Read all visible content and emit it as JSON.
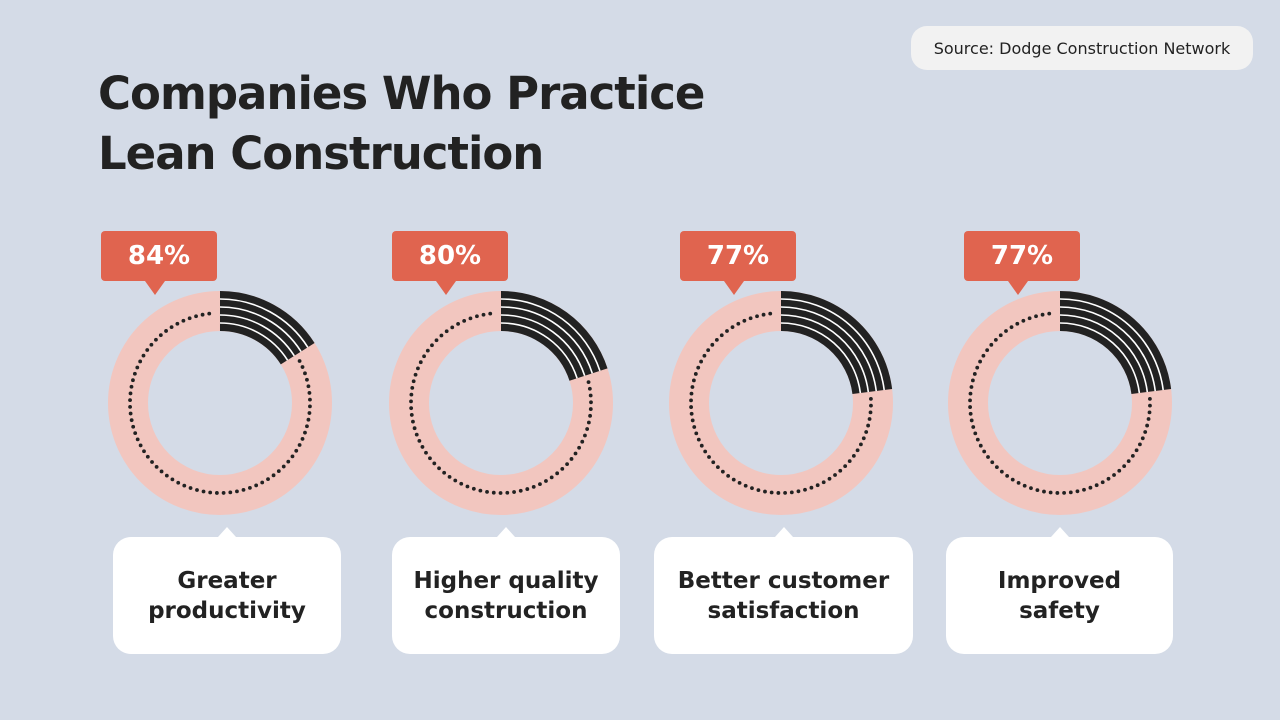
{
  "title": "Companies Who Practice Lean Construction",
  "source": "Source: Dodge Construction Network",
  "colors": {
    "badge": "#e0644f",
    "ring": "#f2c6bf",
    "remainder": "#222222",
    "background": "#d4dbe7"
  },
  "chart_data": {
    "type": "pie",
    "title": "Companies Who Practice Lean Construction",
    "categories": [
      "Greater productivity",
      "Higher quality construction",
      "Better customer satisfaction",
      "Improved safety"
    ],
    "values": [
      84,
      80,
      77,
      77
    ],
    "labels": [
      "84%",
      "80%",
      "77%",
      "77%"
    ]
  }
}
